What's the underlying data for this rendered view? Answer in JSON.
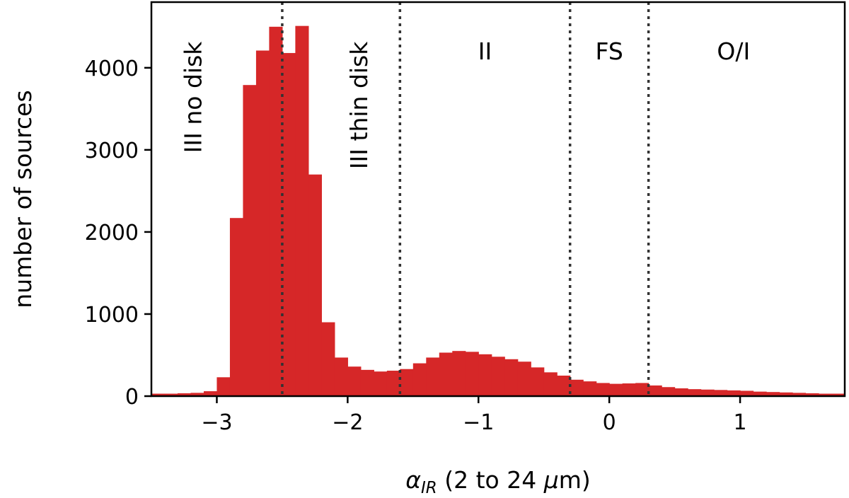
{
  "chart_data": {
    "type": "bar",
    "xlabel_main": "α",
    "xlabel_sub": "IR",
    "xlabel_rest": " (2 to 24 ",
    "xlabel_mu": "μ",
    "xlabel_end": "m)",
    "ylabel": "number of sources",
    "xlim": [
      -3.5,
      1.8
    ],
    "ylim": [
      0,
      4800
    ],
    "bar_color": "#d62728",
    "bin_width": 0.1,
    "bins": [
      {
        "x0": -3.5,
        "value": 30
      },
      {
        "x0": -3.4,
        "value": 30
      },
      {
        "x0": -3.3,
        "value": 35
      },
      {
        "x0": -3.2,
        "value": 40
      },
      {
        "x0": -3.1,
        "value": 60
      },
      {
        "x0": -3.0,
        "value": 230
      },
      {
        "x0": -2.9,
        "value": 2170
      },
      {
        "x0": -2.8,
        "value": 3790
      },
      {
        "x0": -2.7,
        "value": 4210
      },
      {
        "x0": -2.6,
        "value": 4500
      },
      {
        "x0": -2.5,
        "value": 4180
      },
      {
        "x0": -2.4,
        "value": 4510
      },
      {
        "x0": -2.3,
        "value": 2700
      },
      {
        "x0": -2.2,
        "value": 900
      },
      {
        "x0": -2.1,
        "value": 470
      },
      {
        "x0": -2.0,
        "value": 360
      },
      {
        "x0": -1.9,
        "value": 320
      },
      {
        "x0": -1.8,
        "value": 300
      },
      {
        "x0": -1.7,
        "value": 310
      },
      {
        "x0": -1.6,
        "value": 330
      },
      {
        "x0": -1.5,
        "value": 400
      },
      {
        "x0": -1.4,
        "value": 470
      },
      {
        "x0": -1.3,
        "value": 530
      },
      {
        "x0": -1.2,
        "value": 550
      },
      {
        "x0": -1.1,
        "value": 540
      },
      {
        "x0": -1.0,
        "value": 510
      },
      {
        "x0": -0.9,
        "value": 480
      },
      {
        "x0": -0.8,
        "value": 450
      },
      {
        "x0": -0.7,
        "value": 420
      },
      {
        "x0": -0.6,
        "value": 350
      },
      {
        "x0": -0.5,
        "value": 290
      },
      {
        "x0": -0.4,
        "value": 250
      },
      {
        "x0": -0.3,
        "value": 200
      },
      {
        "x0": -0.2,
        "value": 180
      },
      {
        "x0": -0.1,
        "value": 160
      },
      {
        "x0": 0.0,
        "value": 150
      },
      {
        "x0": 0.1,
        "value": 155
      },
      {
        "x0": 0.2,
        "value": 160
      },
      {
        "x0": 0.3,
        "value": 130
      },
      {
        "x0": 0.4,
        "value": 110
      },
      {
        "x0": 0.5,
        "value": 95
      },
      {
        "x0": 0.6,
        "value": 85
      },
      {
        "x0": 0.7,
        "value": 80
      },
      {
        "x0": 0.8,
        "value": 75
      },
      {
        "x0": 0.9,
        "value": 70
      },
      {
        "x0": 1.0,
        "value": 65
      },
      {
        "x0": 1.1,
        "value": 55
      },
      {
        "x0": 1.2,
        "value": 50
      },
      {
        "x0": 1.3,
        "value": 45
      },
      {
        "x0": 1.4,
        "value": 40
      },
      {
        "x0": 1.5,
        "value": 35
      },
      {
        "x0": 1.6,
        "value": 30
      },
      {
        "x0": 1.7,
        "value": 30
      }
    ],
    "xticks": [
      {
        "value": -3,
        "label": "−3"
      },
      {
        "value": -2,
        "label": "−2"
      },
      {
        "value": -1,
        "label": "−1"
      },
      {
        "value": 0,
        "label": "0"
      },
      {
        "value": 1,
        "label": "1"
      }
    ],
    "yticks": [
      {
        "value": 0,
        "label": "0"
      },
      {
        "value": 1000,
        "label": "1000"
      },
      {
        "value": 2000,
        "label": "2000"
      },
      {
        "value": 3000,
        "label": "3000"
      },
      {
        "value": 4000,
        "label": "4000"
      }
    ],
    "boundaries": [
      -2.5,
      -1.6,
      -0.3,
      0.3
    ],
    "regions": [
      {
        "label": "III no disk",
        "x": -3.12,
        "y": 4200,
        "rotated": true
      },
      {
        "label": "III thin disk",
        "x": -1.85,
        "y": 4200,
        "rotated": true
      },
      {
        "label": "II",
        "x": -0.95,
        "y": 4100,
        "rotated": false
      },
      {
        "label": "FS",
        "x": 0.0,
        "y": 4100,
        "rotated": false
      },
      {
        "label": "O/I",
        "x": 0.95,
        "y": 4100,
        "rotated": false
      }
    ]
  }
}
